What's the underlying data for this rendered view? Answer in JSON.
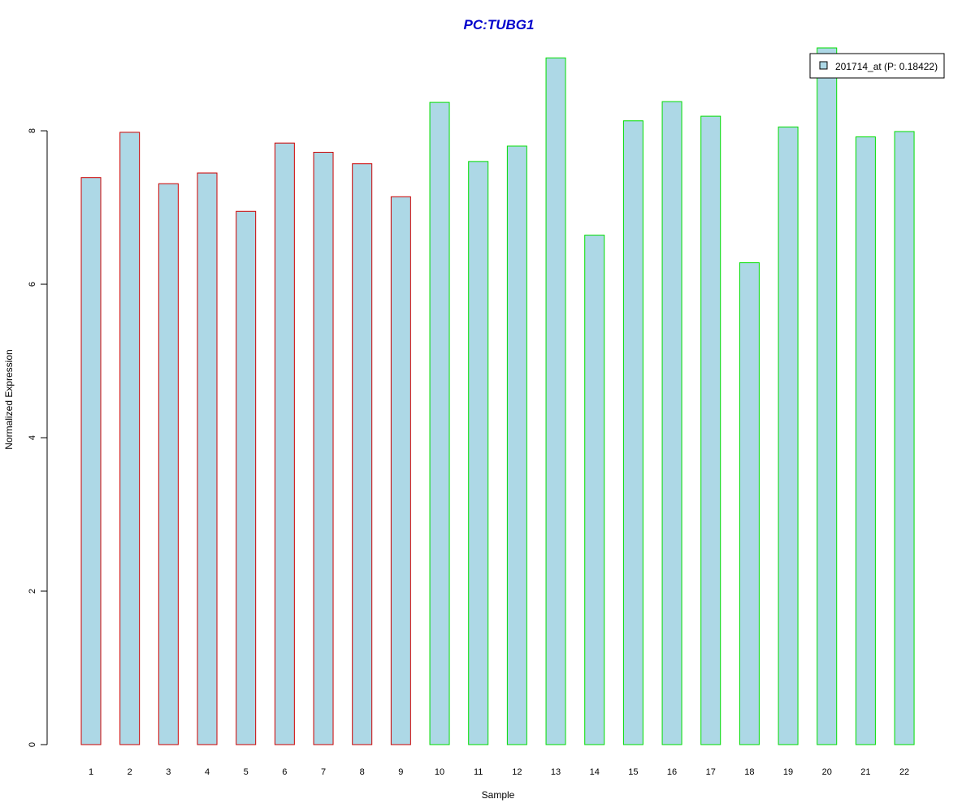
{
  "chart_data": {
    "type": "bar",
    "title": "PC:TUBG1",
    "xlabel": "Sample",
    "ylabel": "Normalized Expression",
    "categories": [
      "1",
      "2",
      "3",
      "4",
      "5",
      "6",
      "7",
      "8",
      "9",
      "10",
      "11",
      "12",
      "13",
      "14",
      "15",
      "16",
      "17",
      "18",
      "19",
      "20",
      "21",
      "22"
    ],
    "values": [
      7.39,
      7.98,
      7.31,
      7.45,
      6.95,
      7.84,
      7.72,
      7.57,
      7.14,
      8.37,
      7.6,
      7.8,
      8.95,
      6.64,
      8.13,
      8.38,
      8.19,
      6.28,
      8.05,
      9.08,
      7.92,
      7.99
    ],
    "groups": [
      1,
      1,
      1,
      1,
      1,
      1,
      1,
      1,
      1,
      2,
      2,
      2,
      2,
      2,
      2,
      2,
      2,
      2,
      2,
      2,
      2,
      2
    ],
    "ylim": [
      0,
      9.08
    ],
    "yticks": [
      0,
      2,
      4,
      6,
      8
    ],
    "legend": {
      "label": "201714_at (P: 0.18422)",
      "position": "top-right"
    },
    "colors": {
      "title": "#0000cc",
      "bar_fill": "#add8e6",
      "group1_border": "#cc0000",
      "group2_border": "#00dd00"
    },
    "grid": false
  }
}
